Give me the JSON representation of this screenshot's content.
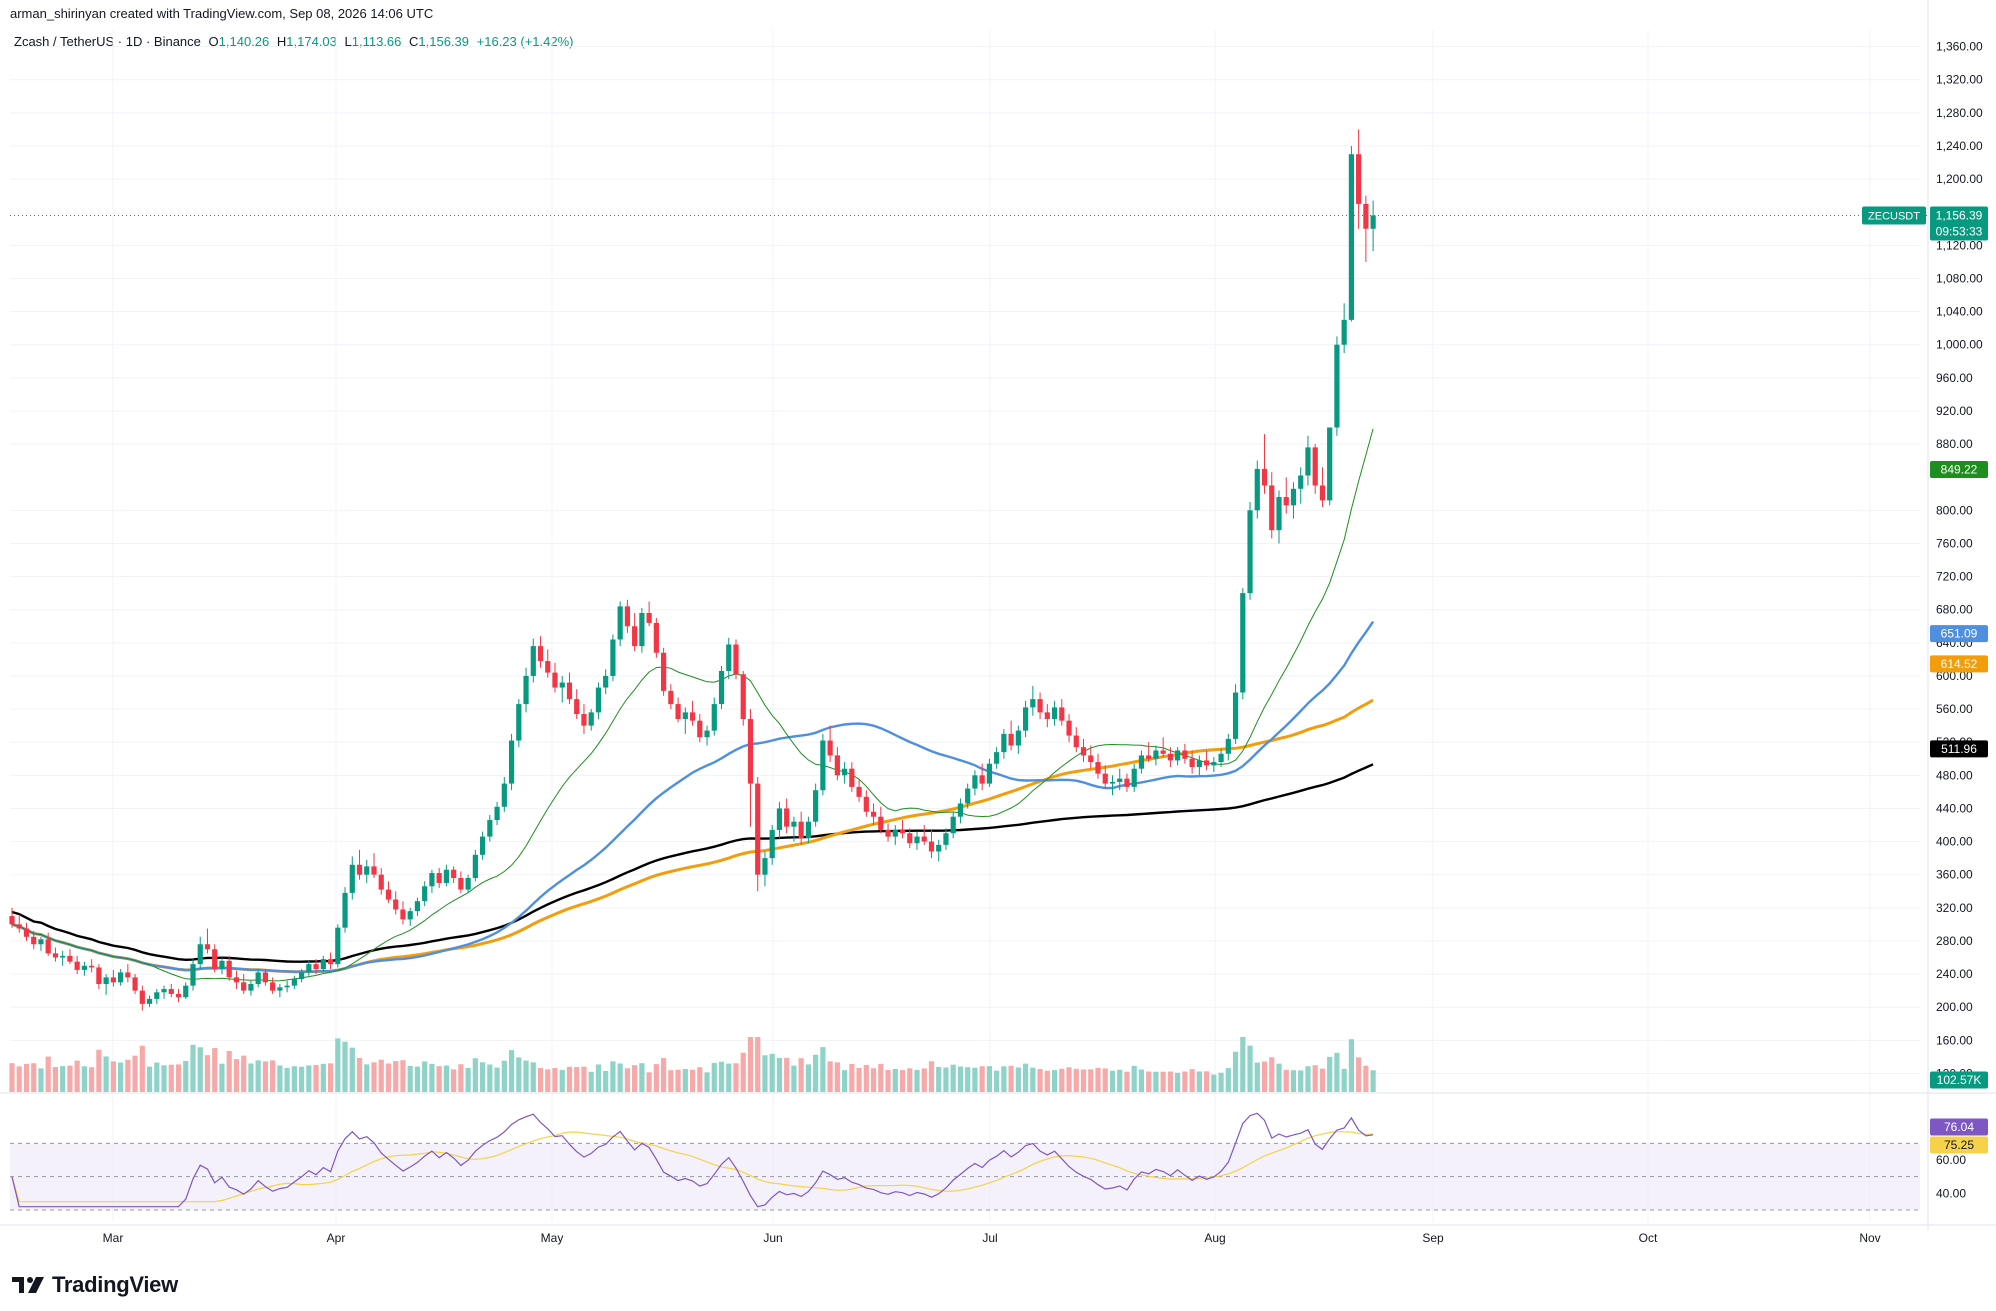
{
  "header": {
    "attribution": "arman_shirinyan created with TradingView.com, Sep 08, 2026 14:06 UTC",
    "symbol": "Zcash / TetherUS · 1D · Binance",
    "open_label": "O",
    "open": "1,140.26",
    "high_label": "H",
    "high": "1,174.03",
    "low_label": "L",
    "low": "1,113.66",
    "close_label": "C",
    "close": "1,156.39",
    "change": "+16.23 (+1.42%)"
  },
  "brand": {
    "name": "TradingView"
  },
  "badges": {
    "price_ticker": "ZECUSDT",
    "price": "1,156.39",
    "countdown": "09:53:33",
    "ma_green": "849.22",
    "ma_blue": "651.09",
    "ma_orange": "614.52",
    "ma_black": "511.96",
    "volume": "102.57K",
    "rsi": "76.04",
    "rsi_ma": "75.25"
  },
  "colors": {
    "up": "#089981",
    "down": "#f23645",
    "vol_up": "#8fd3c8",
    "vol_down": "#f7a9a9",
    "ma_green": "#1e8e1e",
    "ma_blue": "#4f8fe0",
    "ma_orange": "#f29d0c",
    "ma_black": "#000000",
    "rsi": "#7e57c2",
    "rsi_ma": "#f5d24a",
    "rsi_band": "#ede7f6"
  },
  "chart_data": {
    "type": "candlestick",
    "title": "Zcash / TetherUS · 1D · Binance",
    "price_axis_ticks": [
      "1,360.00",
      "1,320.00",
      "1,280.00",
      "1,240.00",
      "1,200.00",
      "1,120.00",
      "1,080.00",
      "1,040.00",
      "1,000.00",
      "960.00",
      "920.00",
      "880.00",
      "800.00",
      "760.00",
      "720.00",
      "680.00",
      "640.00",
      "600.00",
      "560.00",
      "520.00",
      "480.00",
      "440.00",
      "400.00",
      "360.00",
      "320.00",
      "280.00",
      "240.00",
      "200.00",
      "160.00",
      "120.00"
    ],
    "rsi_axis_ticks": [
      "80.00",
      "60.00",
      "40.00"
    ],
    "time_axis_labels": [
      "Mar",
      "Apr",
      "May",
      "Jun",
      "Jul",
      "Aug",
      "Sep",
      "Oct",
      "Nov"
    ],
    "ylim": [
      100,
      1380
    ],
    "ohlc_approx": [
      [
        310,
        320,
        296,
        300
      ],
      [
        300,
        310,
        290,
        295
      ],
      [
        295,
        302,
        280,
        285
      ],
      [
        285,
        292,
        270,
        276
      ],
      [
        276,
        285,
        268,
        282
      ],
      [
        282,
        290,
        262,
        265
      ],
      [
        265,
        272,
        255,
        260
      ],
      [
        260,
        268,
        250,
        262
      ],
      [
        262,
        270,
        252,
        255
      ],
      [
        255,
        262,
        240,
        245
      ],
      [
        245,
        255,
        238,
        250
      ],
      [
        250,
        258,
        242,
        248
      ],
      [
        248,
        252,
        222,
        228
      ],
      [
        228,
        240,
        215,
        236
      ],
      [
        236,
        245,
        225,
        230
      ],
      [
        230,
        246,
        226,
        242
      ],
      [
        242,
        252,
        230,
        236
      ],
      [
        236,
        240,
        216,
        220
      ],
      [
        220,
        226,
        196,
        204
      ],
      [
        204,
        214,
        200,
        210
      ],
      [
        210,
        222,
        204,
        218
      ],
      [
        218,
        226,
        210,
        222
      ],
      [
        222,
        228,
        212,
        216
      ],
      [
        216,
        222,
        206,
        212
      ],
      [
        212,
        230,
        210,
        226
      ],
      [
        226,
        258,
        220,
        252
      ],
      [
        252,
        285,
        246,
        276
      ],
      [
        276,
        295,
        265,
        270
      ],
      [
        270,
        276,
        242,
        246
      ],
      [
        246,
        260,
        240,
        256
      ],
      [
        256,
        262,
        232,
        236
      ],
      [
        236,
        244,
        222,
        230
      ],
      [
        230,
        240,
        216,
        220
      ],
      [
        220,
        232,
        214,
        228
      ],
      [
        228,
        246,
        224,
        242
      ],
      [
        242,
        246,
        226,
        230
      ],
      [
        230,
        236,
        216,
        220
      ],
      [
        220,
        228,
        212,
        224
      ],
      [
        224,
        232,
        218,
        226
      ],
      [
        226,
        238,
        222,
        234
      ],
      [
        234,
        246,
        230,
        242
      ],
      [
        242,
        256,
        238,
        252
      ],
      [
        252,
        258,
        240,
        246
      ],
      [
        246,
        262,
        242,
        258
      ],
      [
        258,
        266,
        246,
        252
      ],
      [
        252,
        300,
        248,
        296
      ],
      [
        296,
        345,
        290,
        338
      ],
      [
        338,
        382,
        330,
        372
      ],
      [
        372,
        390,
        354,
        360
      ],
      [
        360,
        378,
        350,
        370
      ],
      [
        370,
        386,
        356,
        360
      ],
      [
        360,
        368,
        336,
        342
      ],
      [
        342,
        352,
        326,
        330
      ],
      [
        330,
        340,
        312,
        318
      ],
      [
        318,
        328,
        300,
        306
      ],
      [
        306,
        320,
        298,
        316
      ],
      [
        316,
        332,
        310,
        328
      ],
      [
        328,
        352,
        322,
        346
      ],
      [
        346,
        366,
        338,
        362
      ],
      [
        362,
        368,
        344,
        350
      ],
      [
        350,
        372,
        346,
        366
      ],
      [
        366,
        370,
        350,
        356
      ],
      [
        356,
        364,
        338,
        342
      ],
      [
        342,
        360,
        338,
        356
      ],
      [
        356,
        390,
        352,
        384
      ],
      [
        384,
        412,
        378,
        406
      ],
      [
        406,
        432,
        400,
        426
      ],
      [
        426,
        448,
        420,
        442
      ],
      [
        442,
        478,
        436,
        470
      ],
      [
        470,
        530,
        462,
        522
      ],
      [
        522,
        572,
        514,
        566
      ],
      [
        566,
        610,
        556,
        600
      ],
      [
        600,
        645,
        592,
        636
      ],
      [
        636,
        648,
        610,
        618
      ],
      [
        618,
        632,
        598,
        604
      ],
      [
        604,
        616,
        580,
        586
      ],
      [
        586,
        600,
        568,
        592
      ],
      [
        592,
        604,
        566,
        572
      ],
      [
        572,
        584,
        548,
        554
      ],
      [
        554,
        566,
        530,
        540
      ],
      [
        540,
        560,
        534,
        556
      ],
      [
        556,
        592,
        548,
        586
      ],
      [
        586,
        608,
        578,
        600
      ],
      [
        600,
        650,
        594,
        644
      ],
      [
        644,
        690,
        636,
        684
      ],
      [
        684,
        692,
        652,
        660
      ],
      [
        660,
        676,
        630,
        636
      ],
      [
        636,
        682,
        628,
        676
      ],
      [
        676,
        690,
        660,
        664
      ],
      [
        664,
        670,
        622,
        628
      ],
      [
        628,
        634,
        576,
        582
      ],
      [
        582,
        590,
        560,
        566
      ],
      [
        566,
        574,
        544,
        548
      ],
      [
        548,
        562,
        530,
        556
      ],
      [
        556,
        570,
        540,
        546
      ],
      [
        546,
        554,
        520,
        526
      ],
      [
        526,
        540,
        516,
        534
      ],
      [
        534,
        574,
        528,
        566
      ],
      [
        566,
        612,
        560,
        606
      ],
      [
        606,
        646,
        596,
        638
      ],
      [
        638,
        644,
        596,
        602
      ],
      [
        602,
        606,
        540,
        548
      ],
      [
        548,
        560,
        418,
        470
      ],
      [
        470,
        478,
        340,
        360
      ],
      [
        360,
        388,
        346,
        380
      ],
      [
        380,
        420,
        372,
        414
      ],
      [
        414,
        448,
        404,
        440
      ],
      [
        440,
        452,
        410,
        418
      ],
      [
        418,
        430,
        400,
        424
      ],
      [
        424,
        436,
        396,
        404
      ],
      [
        404,
        430,
        398,
        424
      ],
      [
        424,
        470,
        418,
        462
      ],
      [
        462,
        530,
        456,
        522
      ],
      [
        522,
        540,
        496,
        504
      ],
      [
        504,
        514,
        474,
        480
      ],
      [
        480,
        496,
        470,
        488
      ],
      [
        488,
        496,
        460,
        466
      ],
      [
        466,
        476,
        448,
        454
      ],
      [
        454,
        462,
        430,
        436
      ],
      [
        436,
        446,
        420,
        430
      ],
      [
        430,
        442,
        410,
        414
      ],
      [
        414,
        422,
        400,
        406
      ],
      [
        406,
        420,
        396,
        414
      ],
      [
        414,
        426,
        404,
        410
      ],
      [
        410,
        416,
        392,
        398
      ],
      [
        398,
        412,
        390,
        406
      ],
      [
        406,
        420,
        396,
        400
      ],
      [
        400,
        414,
        380,
        388
      ],
      [
        388,
        402,
        376,
        396
      ],
      [
        396,
        416,
        390,
        410
      ],
      [
        410,
        436,
        404,
        430
      ],
      [
        430,
        452,
        422,
        446
      ],
      [
        446,
        470,
        440,
        464
      ],
      [
        464,
        486,
        456,
        480
      ],
      [
        480,
        494,
        462,
        470
      ],
      [
        470,
        500,
        466,
        494
      ],
      [
        494,
        514,
        488,
        508
      ],
      [
        508,
        536,
        500,
        530
      ],
      [
        530,
        546,
        510,
        516
      ],
      [
        516,
        540,
        506,
        534
      ],
      [
        534,
        570,
        526,
        562
      ],
      [
        562,
        588,
        552,
        572
      ],
      [
        572,
        580,
        548,
        556
      ],
      [
        556,
        566,
        538,
        548
      ],
      [
        548,
        570,
        540,
        562
      ],
      [
        562,
        572,
        540,
        546
      ],
      [
        546,
        554,
        520,
        528
      ],
      [
        528,
        538,
        508,
        514
      ],
      [
        514,
        524,
        496,
        504
      ],
      [
        504,
        516,
        488,
        496
      ],
      [
        496,
        506,
        476,
        482
      ],
      [
        482,
        492,
        464,
        470
      ],
      [
        470,
        480,
        456,
        472
      ],
      [
        472,
        488,
        462,
        476
      ],
      [
        476,
        482,
        460,
        466
      ],
      [
        466,
        494,
        460,
        488
      ],
      [
        488,
        510,
        482,
        504
      ],
      [
        504,
        520,
        496,
        500
      ],
      [
        500,
        516,
        492,
        510
      ],
      [
        510,
        526,
        502,
        506
      ],
      [
        506,
        514,
        490,
        498
      ],
      [
        498,
        514,
        492,
        510
      ],
      [
        510,
        518,
        494,
        500
      ],
      [
        500,
        510,
        482,
        490
      ],
      [
        490,
        504,
        480,
        498
      ],
      [
        498,
        510,
        486,
        492
      ],
      [
        492,
        502,
        484,
        496
      ],
      [
        496,
        512,
        490,
        506
      ],
      [
        506,
        530,
        498,
        524
      ],
      [
        524,
        590,
        518,
        580
      ],
      [
        580,
        706,
        572,
        700
      ],
      [
        700,
        810,
        692,
        800
      ],
      [
        800,
        860,
        790,
        850
      ],
      [
        850,
        892,
        820,
        830
      ],
      [
        830,
        846,
        766,
        776
      ],
      [
        776,
        824,
        760,
        816
      ],
      [
        816,
        840,
        796,
        806
      ],
      [
        806,
        834,
        790,
        826
      ],
      [
        826,
        852,
        808,
        842
      ],
      [
        842,
        890,
        830,
        876
      ],
      [
        876,
        880,
        820,
        830
      ],
      [
        830,
        852,
        804,
        812
      ],
      [
        812,
        900,
        806,
        900
      ],
      [
        900,
        1010,
        890,
        1000
      ],
      [
        1000,
        1050,
        990,
        1030
      ],
      [
        1030,
        1240,
        1028,
        1230
      ],
      [
        1230,
        1260,
        1140,
        1170
      ],
      [
        1170,
        1180,
        1100,
        1140
      ],
      [
        1140,
        1174,
        1113,
        1156
      ]
    ],
    "series": [
      {
        "name": "ZECUSDT",
        "last": 1156.39
      },
      {
        "name": "MA 849.22",
        "last": 849.22
      },
      {
        "name": "MA 651.09",
        "last": 651.09
      },
      {
        "name": "MA 614.52",
        "last": 614.52
      },
      {
        "name": "MA 511.96",
        "last": 511.96
      },
      {
        "name": "Volume",
        "last": "102.57K"
      },
      {
        "name": "RSI",
        "last": 76.04
      },
      {
        "name": "RSI MA",
        "last": 75.25
      }
    ]
  }
}
